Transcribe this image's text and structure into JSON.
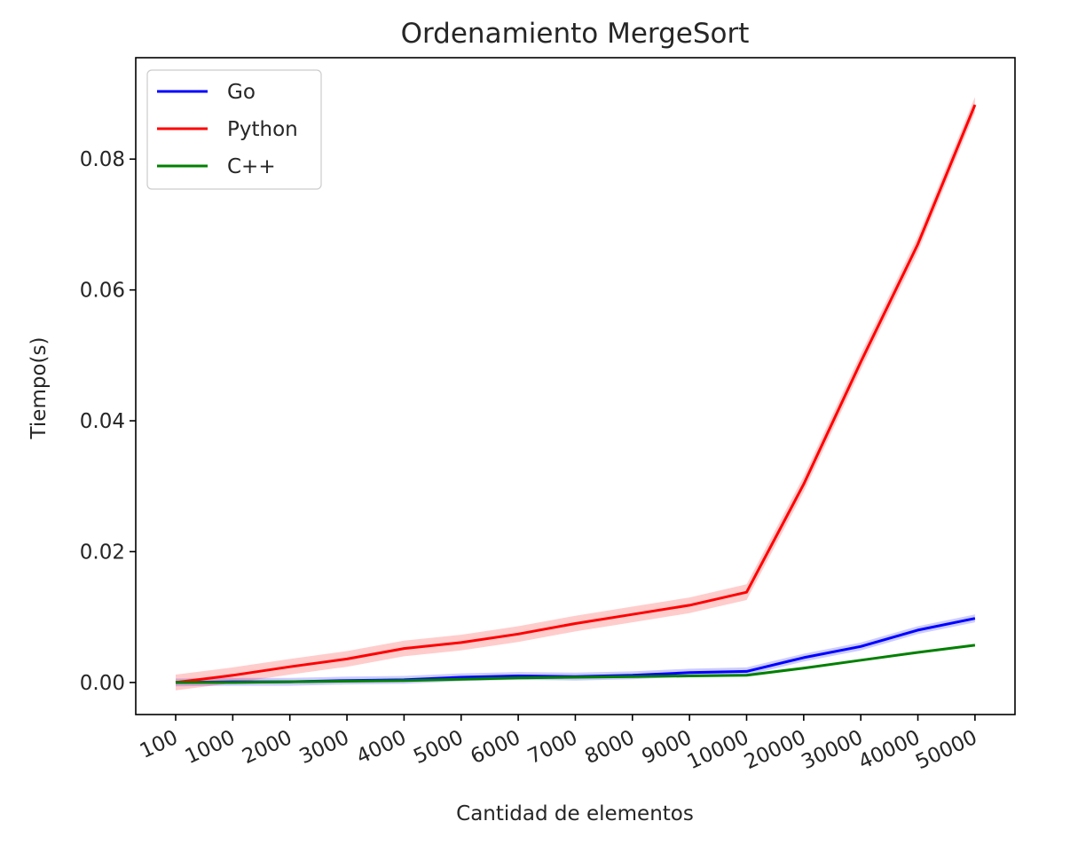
{
  "chart_data": {
    "type": "line",
    "title": "Ordenamiento MergeSort",
    "xlabel": "Cantidad de elementos",
    "ylabel": "Tiempo(s)",
    "categories": [
      "100",
      "1000",
      "2000",
      "3000",
      "4000",
      "5000",
      "6000",
      "7000",
      "8000",
      "9000",
      "10000",
      "20000",
      "30000",
      "40000",
      "50000"
    ],
    "ylim": [
      -0.0049,
      0.0955
    ],
    "yticks": [
      0.0,
      0.02,
      0.04,
      0.06,
      0.08
    ],
    "ytick_labels": [
      "0.00",
      "0.02",
      "0.04",
      "0.06",
      "0.08"
    ],
    "grid": false,
    "legend_position": "upper-left",
    "series": [
      {
        "name": "Go",
        "color": "#0000ff",
        "values": [
          0.0,
          0.0001,
          0.0001,
          0.0003,
          0.0004,
          0.0008,
          0.001,
          0.0009,
          0.0011,
          0.0015,
          0.0017,
          0.0038,
          0.0055,
          0.008,
          0.0098
        ],
        "band": 0.0006
      },
      {
        "name": "Python",
        "color": "#ff0000",
        "values": [
          0.0,
          0.0011,
          0.0024,
          0.0036,
          0.0052,
          0.0061,
          0.0074,
          0.009,
          0.0104,
          0.0118,
          0.0138,
          0.0303,
          0.049,
          0.067,
          0.0883
        ],
        "band": 0.0012
      },
      {
        "name": "C++",
        "color": "#008000",
        "values": [
          0.0,
          0.0,
          0.0001,
          0.0002,
          0.0003,
          0.0005,
          0.0007,
          0.0008,
          0.0009,
          0.001,
          0.0011,
          0.0022,
          0.0034,
          0.0046,
          0.0057
        ],
        "band": 0.0002
      }
    ]
  }
}
